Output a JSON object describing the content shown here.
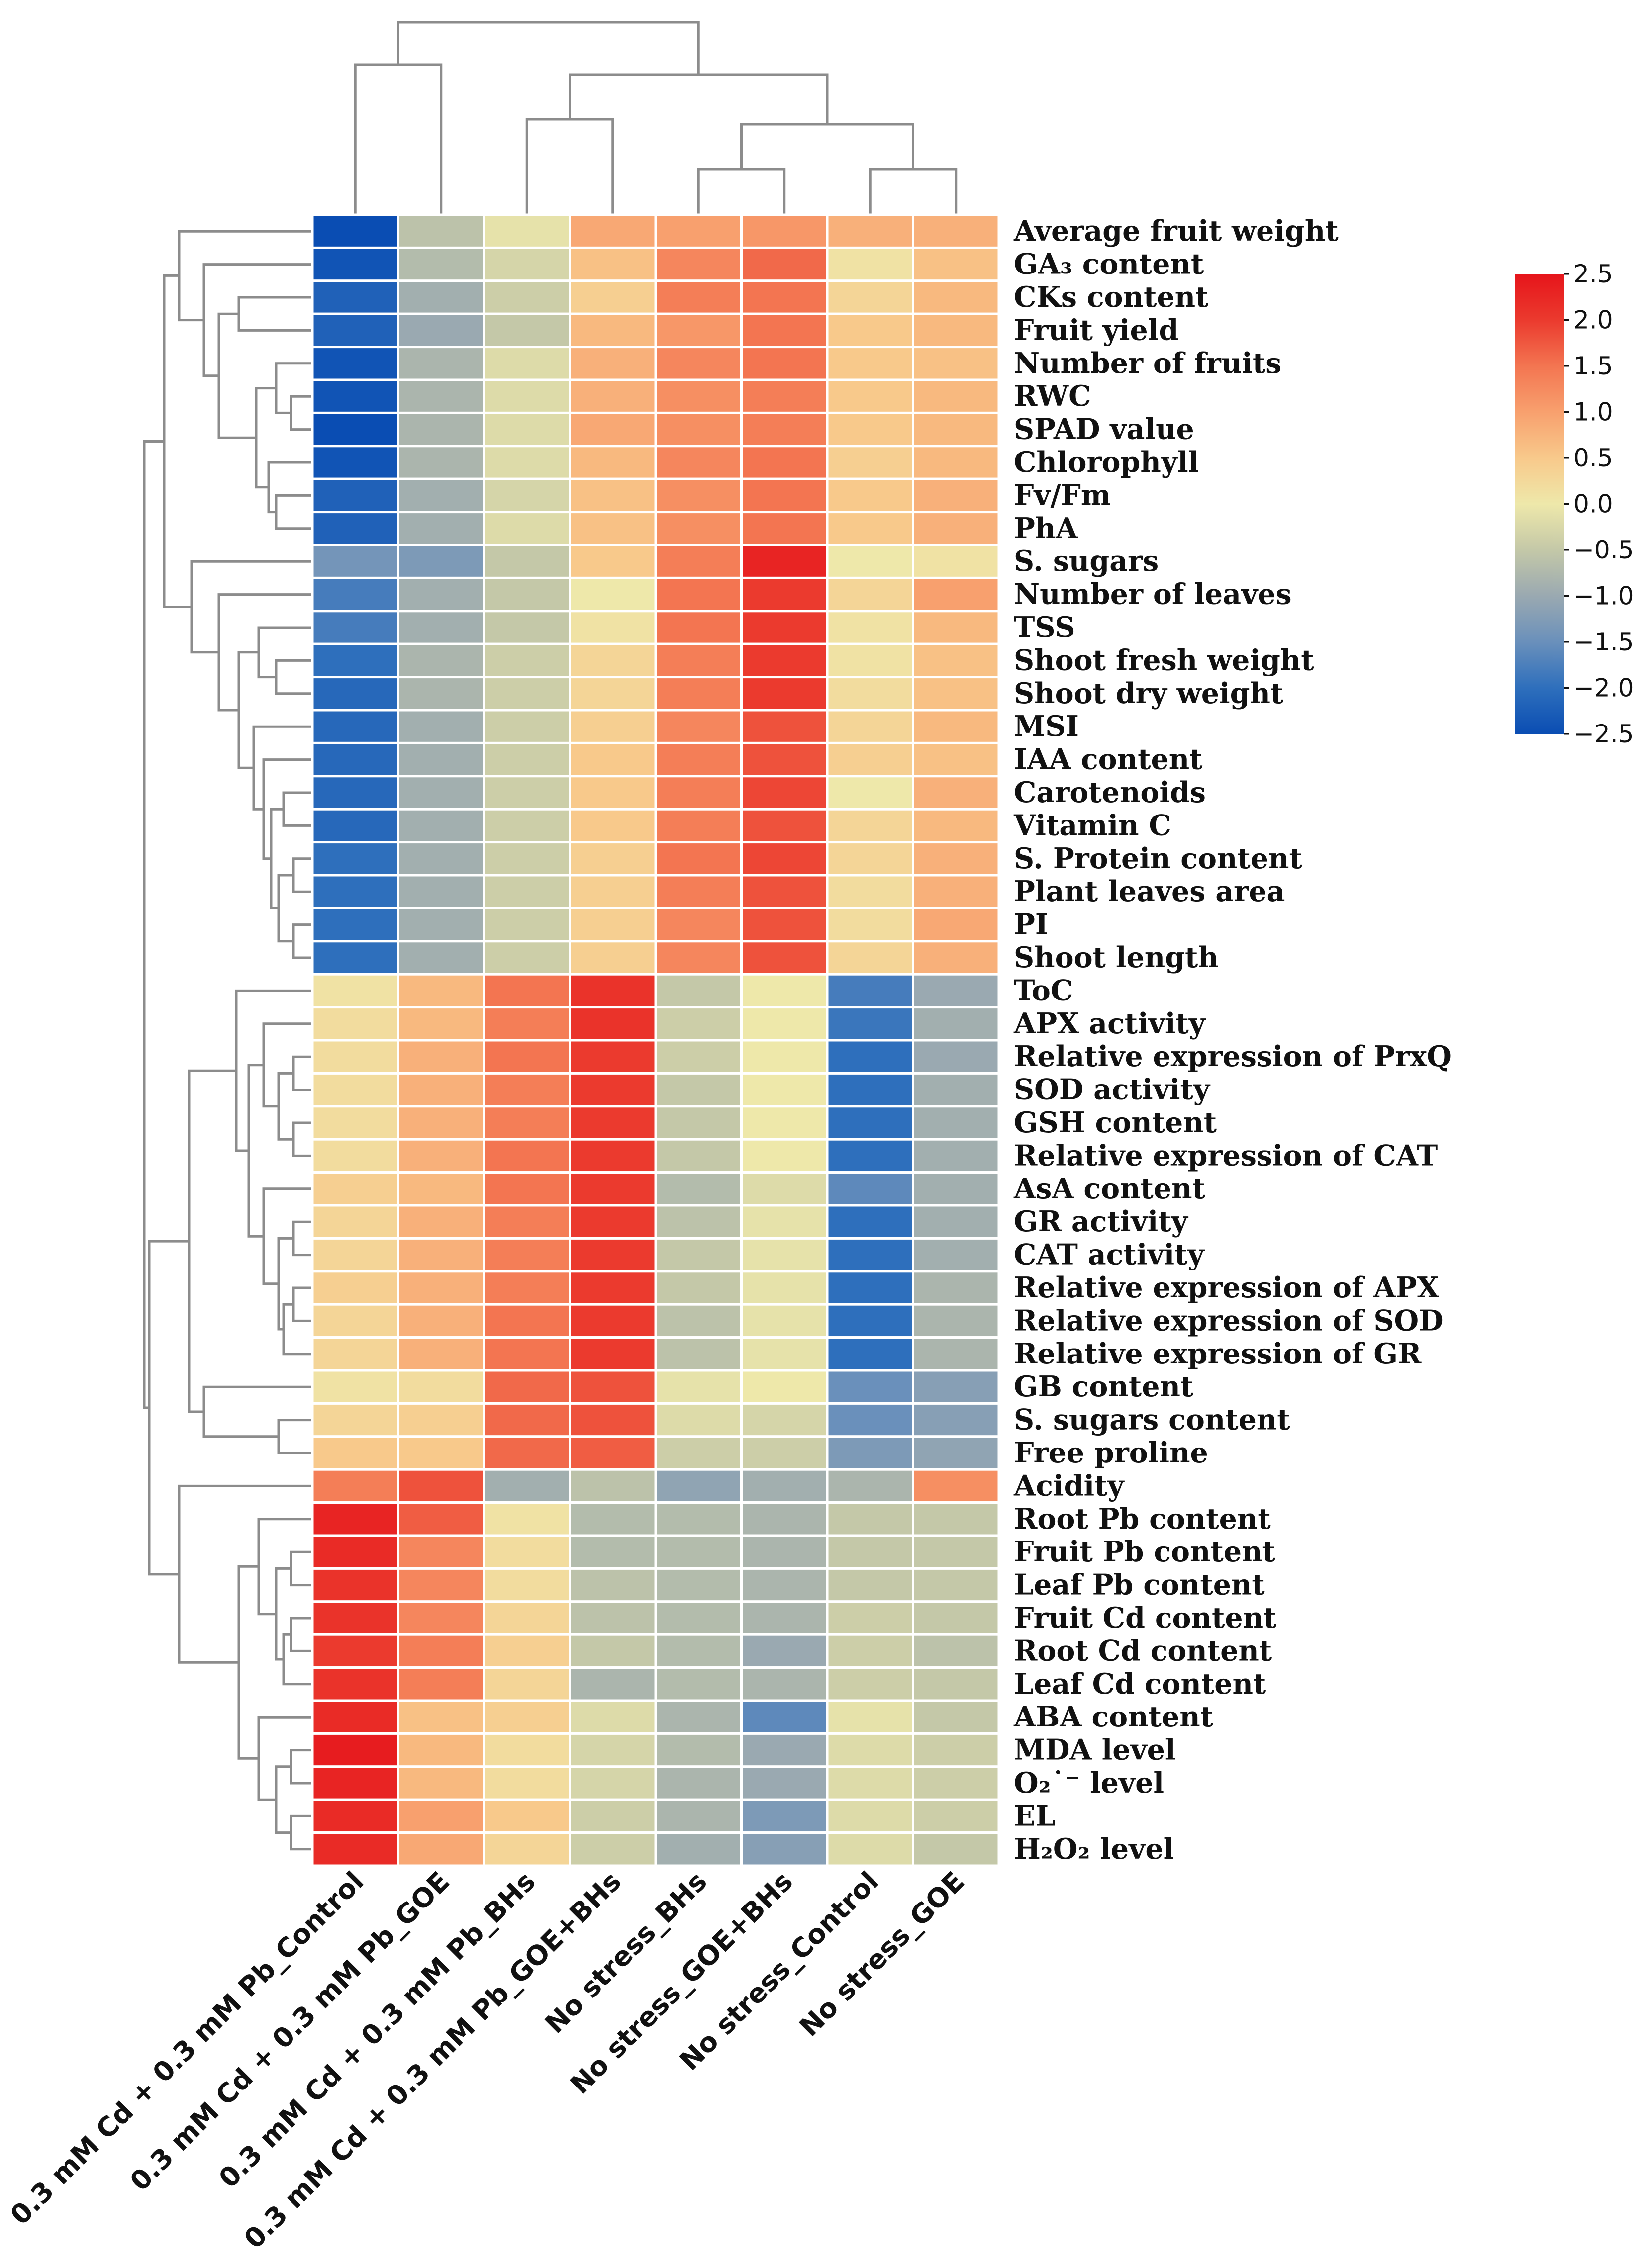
{
  "chart_data": {
    "type": "heatmap",
    "title": "",
    "columns": [
      "0.3 mM Cd + 0.3 mM Pb_Control",
      "0.3 mM Cd + 0.3 mM Pb_GOE",
      "0.3 mM Cd + 0.3 mM Pb_BHs",
      "0.3 mM Cd + 0.3 mM Pb_GOE+BHs",
      "No stress_BHs",
      "No stress_GOE+BHs",
      "No stress_Control",
      "No stress_GOE"
    ],
    "rows": [
      "Average fruit weight",
      "GA₃ content",
      "CKs content",
      "Fruit yield",
      "Number of fruits",
      "RWC",
      "SPAD value",
      "Chlorophyll",
      "Fv/Fm",
      "PhA",
      "S. sugars",
      "Number of leaves",
      "TSS",
      "Shoot fresh weight",
      "Shoot dry weight",
      "MSI",
      "IAA content",
      "Carotenoids",
      "Vitamin C",
      "S. Protein content",
      "Plant leaves area",
      "PI",
      "Shoot length",
      "ToC",
      "APX activity",
      "Relative expression of PrxQ",
      "SOD activity",
      "GSH content",
      "Relative expression of CAT",
      "AsA content",
      "GR activity",
      "CAT activity",
      "Relative expression of APX",
      "Relative expression of SOD",
      "Relative expression of GR",
      "GB content",
      "S. sugars content",
      "Free proline",
      "Acidity",
      "Root Pb content",
      "Fruit Pb content",
      "Leaf Pb content",
      "Fruit Cd content",
      "Root Cd content",
      "Leaf Cd content",
      "ABA content",
      "MDA level",
      "O₂˙⁻ level",
      "EL",
      "H₂O₂ level"
    ],
    "values": [
      [
        -2.5,
        -0.6,
        -0.1,
        0.9,
        1.0,
        1.1,
        0.8,
        0.8
      ],
      [
        -2.4,
        -0.7,
        -0.3,
        0.6,
        1.3,
        1.6,
        0.1,
        0.6
      ],
      [
        -2.2,
        -0.9,
        -0.4,
        0.4,
        1.4,
        1.5,
        0.3,
        0.7
      ],
      [
        -2.2,
        -1.0,
        -0.5,
        0.7,
        1.1,
        1.5,
        0.5,
        0.7
      ],
      [
        -2.4,
        -0.8,
        -0.2,
        0.8,
        1.3,
        1.5,
        0.5,
        0.6
      ],
      [
        -2.4,
        -0.8,
        -0.2,
        0.8,
        1.2,
        1.4,
        0.5,
        0.7
      ],
      [
        -2.5,
        -0.8,
        -0.2,
        0.9,
        1.2,
        1.4,
        0.5,
        0.7
      ],
      [
        -2.4,
        -0.8,
        -0.2,
        0.7,
        1.3,
        1.5,
        0.4,
        0.7
      ],
      [
        -2.2,
        -0.9,
        -0.3,
        0.6,
        1.2,
        1.5,
        0.5,
        0.8
      ],
      [
        -2.2,
        -0.9,
        -0.2,
        0.6,
        1.2,
        1.5,
        0.5,
        0.8
      ],
      [
        -1.4,
        -1.3,
        -0.5,
        0.5,
        1.4,
        2.3,
        0.0,
        0.1
      ],
      [
        -1.8,
        -0.9,
        -0.5,
        0.0,
        1.5,
        2.0,
        0.3,
        1.0
      ],
      [
        -1.8,
        -0.9,
        -0.5,
        0.1,
        1.5,
        2.0,
        0.1,
        0.7
      ],
      [
        -2.0,
        -0.8,
        -0.4,
        0.3,
        1.4,
        2.0,
        0.1,
        0.6
      ],
      [
        -2.1,
        -0.8,
        -0.4,
        0.3,
        1.4,
        2.0,
        0.2,
        0.6
      ],
      [
        -2.1,
        -0.9,
        -0.4,
        0.4,
        1.3,
        1.8,
        0.3,
        0.7
      ],
      [
        -2.1,
        -0.9,
        -0.4,
        0.5,
        1.4,
        1.8,
        0.4,
        0.6
      ],
      [
        -2.1,
        -0.9,
        -0.4,
        0.5,
        1.4,
        1.9,
        0.0,
        0.8
      ],
      [
        -2.1,
        -0.9,
        -0.4,
        0.5,
        1.4,
        1.8,
        0.3,
        0.7
      ],
      [
        -2.0,
        -0.9,
        -0.4,
        0.4,
        1.5,
        1.9,
        0.3,
        0.8
      ],
      [
        -2.0,
        -0.9,
        -0.4,
        0.4,
        1.4,
        1.8,
        0.2,
        0.8
      ],
      [
        -2.0,
        -0.9,
        -0.4,
        0.4,
        1.3,
        1.8,
        0.2,
        0.9
      ],
      [
        -2.0,
        -0.9,
        -0.4,
        0.4,
        1.3,
        1.8,
        0.3,
        0.8
      ],
      [
        0.1,
        0.7,
        1.5,
        2.1,
        -0.5,
        0.0,
        -1.8,
        -1.0
      ],
      [
        0.2,
        0.7,
        1.4,
        2.1,
        -0.4,
        0.0,
        -1.9,
        -0.9
      ],
      [
        0.2,
        0.8,
        1.5,
        2.0,
        -0.4,
        0.0,
        -2.0,
        -1.0
      ],
      [
        0.2,
        0.8,
        1.4,
        2.0,
        -0.5,
        0.0,
        -2.0,
        -0.9
      ],
      [
        0.2,
        0.8,
        1.4,
        2.0,
        -0.5,
        0.0,
        -2.0,
        -0.9
      ],
      [
        0.2,
        0.8,
        1.5,
        2.0,
        -0.5,
        0.0,
        -2.0,
        -0.9
      ],
      [
        0.4,
        0.7,
        1.5,
        2.0,
        -0.7,
        -0.2,
        -1.6,
        -0.9
      ],
      [
        0.3,
        0.8,
        1.4,
        2.0,
        -0.6,
        -0.1,
        -2.0,
        -0.9
      ],
      [
        0.3,
        0.8,
        1.4,
        2.0,
        -0.5,
        -0.1,
        -2.0,
        -0.9
      ],
      [
        0.4,
        0.8,
        1.4,
        2.0,
        -0.5,
        -0.1,
        -2.0,
        -0.8
      ],
      [
        0.3,
        0.8,
        1.5,
        2.0,
        -0.6,
        -0.1,
        -2.0,
        -0.8
      ],
      [
        0.3,
        0.8,
        1.5,
        2.0,
        -0.6,
        -0.1,
        -2.0,
        -0.8
      ],
      [
        0.1,
        0.2,
        1.6,
        1.8,
        -0.1,
        0.0,
        -1.5,
        -1.2
      ],
      [
        0.3,
        0.4,
        1.6,
        1.8,
        -0.2,
        -0.3,
        -1.5,
        -1.2
      ],
      [
        0.5,
        0.5,
        1.6,
        1.7,
        -0.4,
        -0.4,
        -1.3,
        -1.1
      ],
      [
        1.4,
        1.8,
        -0.9,
        -0.6,
        -1.1,
        -0.9,
        -0.8,
        1.2
      ],
      [
        2.3,
        1.7,
        0.1,
        -0.7,
        -0.7,
        -0.8,
        -0.5,
        -0.5
      ],
      [
        2.2,
        1.3,
        0.2,
        -0.7,
        -0.7,
        -0.8,
        -0.5,
        -0.5
      ],
      [
        2.1,
        1.3,
        0.2,
        -0.6,
        -0.7,
        -0.8,
        -0.5,
        -0.5
      ],
      [
        2.1,
        1.3,
        0.3,
        -0.6,
        -0.7,
        -0.8,
        -0.4,
        -0.5
      ],
      [
        2.0,
        1.4,
        0.4,
        -0.5,
        -0.7,
        -1.0,
        -0.4,
        -0.6
      ],
      [
        2.1,
        1.4,
        0.3,
        -0.8,
        -0.7,
        -0.8,
        -0.4,
        -0.5
      ],
      [
        2.2,
        0.6,
        0.4,
        -0.2,
        -0.8,
        -1.6,
        -0.1,
        -0.5
      ],
      [
        2.4,
        0.7,
        0.2,
        -0.3,
        -0.7,
        -1.0,
        -0.2,
        -0.4
      ],
      [
        2.3,
        0.7,
        0.2,
        -0.3,
        -0.8,
        -1.0,
        -0.2,
        -0.4
      ],
      [
        2.2,
        1.0,
        0.5,
        -0.4,
        -0.8,
        -1.3,
        -0.2,
        -0.4
      ],
      [
        2.2,
        0.9,
        0.3,
        -0.4,
        -0.9,
        -1.2,
        -0.2,
        -0.5
      ]
    ],
    "color_scale": {
      "min": -2.5,
      "max": 2.5,
      "ticks": [
        "2.5",
        "2.0",
        "1.5",
        "1.0",
        "0.5",
        "0.0",
        "−0.5",
        "−1.0",
        "−1.5",
        "−2.0",
        "−2.5"
      ],
      "colors": [
        "#0a4db3",
        "#2e6fbc",
        "#6a90bb",
        "#9aa9b1",
        "#c4c8a8",
        "#eee8aa",
        "#f8c98b",
        "#f8a06e",
        "#f37551",
        "#eb3a2e",
        "#e6151b"
      ]
    },
    "legend_position": "top-right",
    "row_dendrogram": true,
    "column_dendrogram": true
  }
}
